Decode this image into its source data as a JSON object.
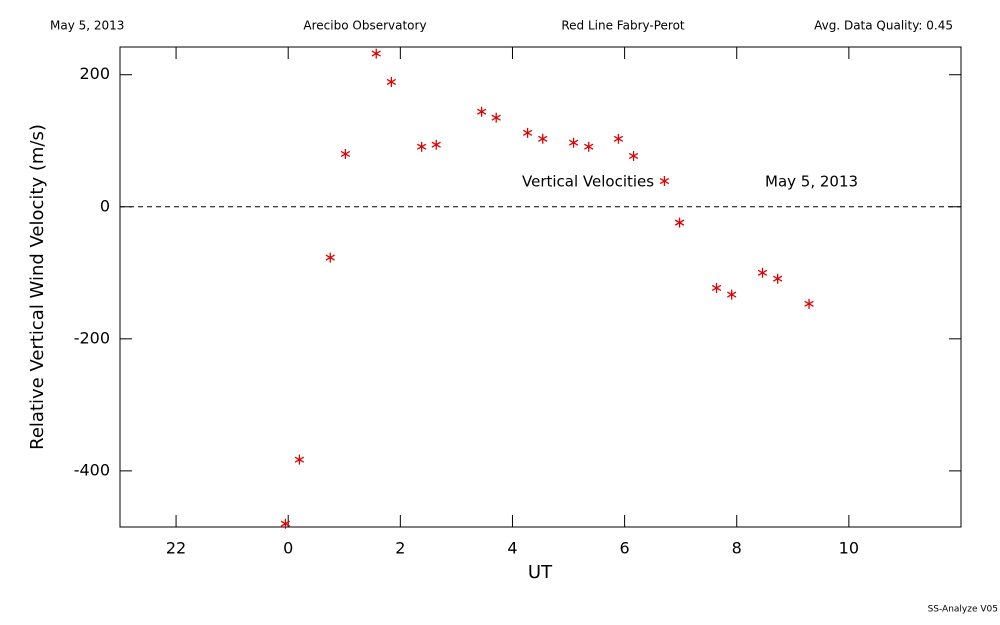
{
  "chart_data": {
    "type": "scatter",
    "header": [
      "May 5, 2013",
      "Arecibo Observatory",
      "Red Line Fabry-Perot",
      "Avg. Data Quality: 0.45"
    ],
    "xlabel": "UT",
    "ylabel": "Relative Vertical Wind Velocity (m/s)",
    "annotations": [
      "Vertical Velocities",
      "May 5, 2013"
    ],
    "footer": "SS-Analyze V05",
    "color": "#e00000",
    "zero_line": true,
    "xlim": [
      -3,
      12
    ],
    "xticks": [
      {
        "value": -2,
        "label": "22"
      },
      0,
      2,
      4,
      6,
      8,
      10
    ],
    "ylim": [
      -485,
      242
    ],
    "yticks": [
      -400,
      -200,
      0,
      200
    ],
    "x": [
      -0.05,
      0.2,
      0.75,
      1.02,
      1.57,
      1.84,
      2.38,
      2.64,
      3.45,
      3.71,
      4.27,
      4.54,
      5.09,
      5.36,
      5.89,
      6.16,
      6.71,
      6.98,
      7.64,
      7.91,
      8.46,
      8.73,
      9.29
    ],
    "values": [
      -480,
      -383,
      -77,
      80,
      232,
      189,
      91,
      94,
      144,
      135,
      112,
      103,
      97,
      91,
      103,
      77,
      39,
      -24,
      -123,
      -133,
      -100,
      -109,
      -147
    ]
  }
}
